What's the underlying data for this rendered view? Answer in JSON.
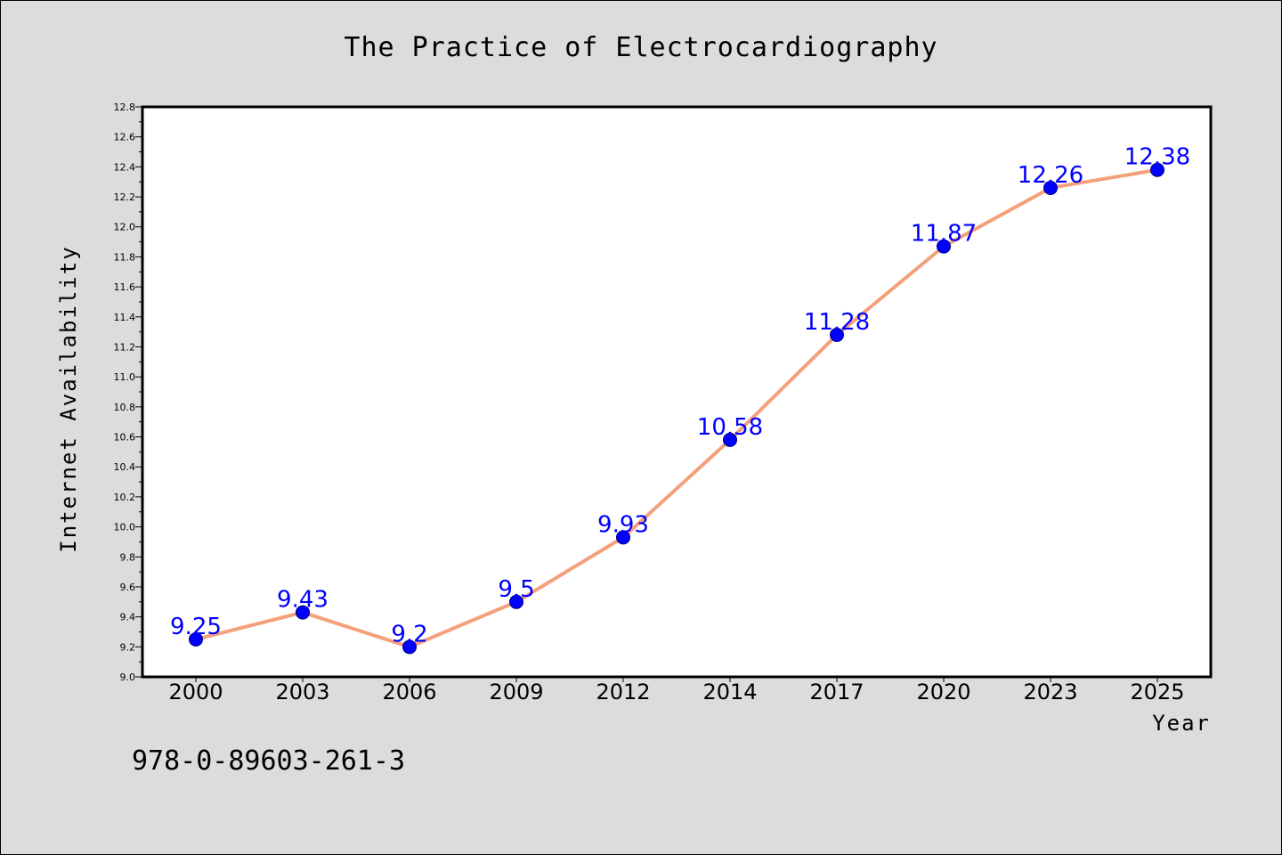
{
  "colors": {
    "page_background": "#dcdcdc",
    "plot_background": "#ffffff",
    "line": "#f4a07a",
    "marker": "#0000ff",
    "data_label": "#0000ff",
    "axis": "#000000"
  },
  "isbn": "978-0-89603-261-3",
  "chart_data": {
    "type": "line",
    "title": "The Practice of Electrocardiography",
    "xlabel": "Year",
    "ylabel": "Internet Availability",
    "categories": [
      "2000",
      "2003",
      "2006",
      "2009",
      "2012",
      "2014",
      "2017",
      "2020",
      "2023",
      "2025"
    ],
    "series": [
      {
        "values": [
          9.25,
          9.43,
          9.2,
          9.5,
          9.93,
          10.58,
          11.28,
          11.87,
          12.26,
          12.38
        ],
        "data_labels": [
          "9.25",
          "9.43",
          "9.2",
          "9.5",
          "9.93",
          "10.58",
          "11.28",
          "11.87",
          "12.26",
          "12.38"
        ],
        "marker": "circle"
      }
    ],
    "ylim": [
      9.0,
      12.8
    ],
    "yticks": [
      9.0,
      9.2,
      9.4,
      9.6,
      9.8,
      10.0,
      10.2,
      10.4,
      10.6,
      10.8,
      11.0,
      11.2,
      11.4,
      11.6,
      11.8,
      12.0,
      12.2,
      12.4,
      12.6,
      12.8
    ],
    "ytick_labels": [
      "9.0",
      "9.2",
      "9.4",
      "9.6",
      "9.8",
      "10.0",
      "10.2",
      "10.4",
      "10.6",
      "10.8",
      "11.0",
      "11.2",
      "11.4",
      "11.6",
      "11.8",
      "12.0",
      "12.2",
      "12.4",
      "12.6",
      "12.8"
    ],
    "grid": false,
    "legend": "none"
  }
}
